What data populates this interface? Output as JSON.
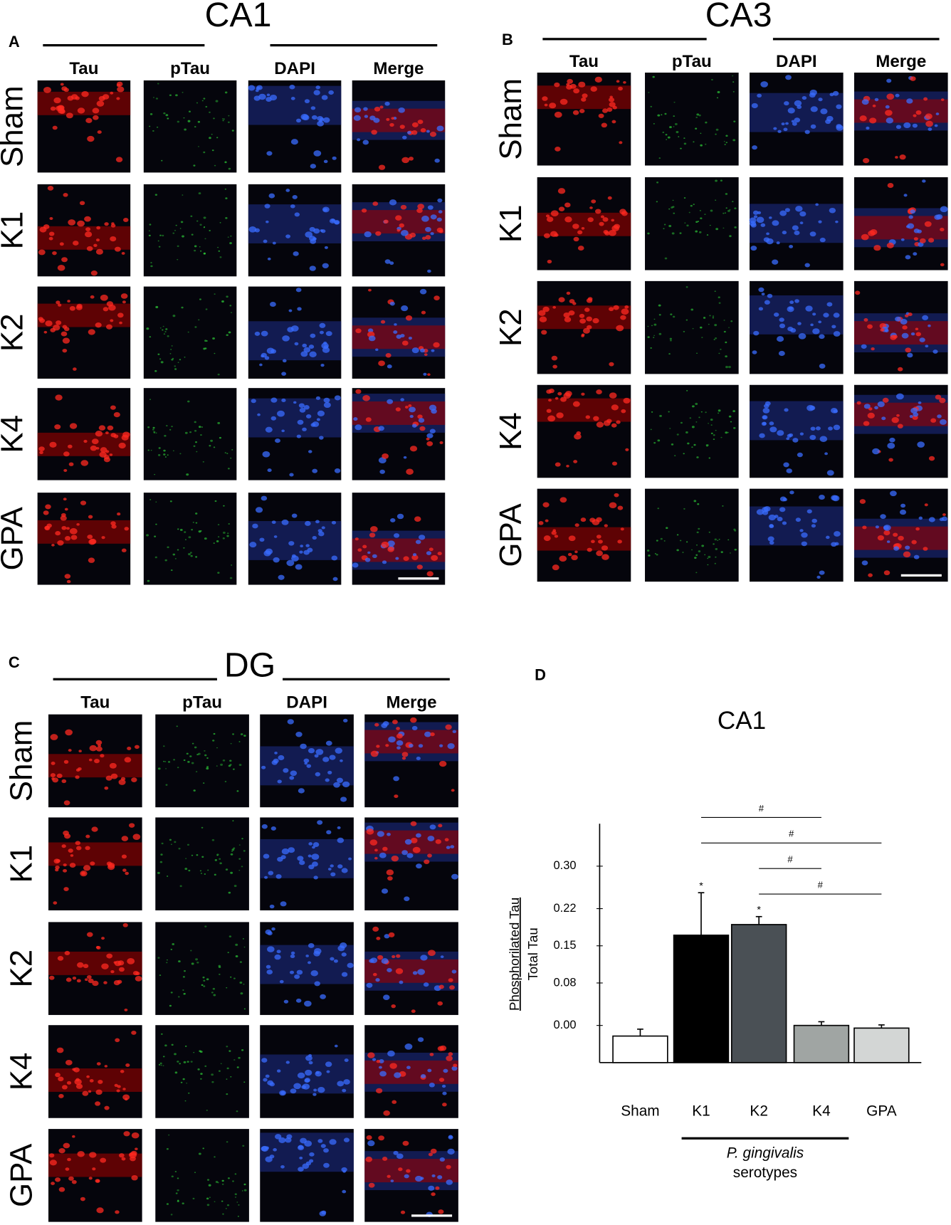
{
  "panels": [
    {
      "letter": "A",
      "region": "CA1",
      "columns": [
        "Tau",
        "pTau",
        "DAPI",
        "Merge"
      ],
      "rows": [
        "Sham",
        "K1",
        "K2",
        "K4",
        "GPA"
      ]
    },
    {
      "letter": "B",
      "region": "CA3",
      "columns": [
        "Tau",
        "pTau",
        "DAPI",
        "Merge"
      ],
      "rows": [
        "Sham",
        "K1",
        "K2",
        "K4",
        "GPA"
      ]
    },
    {
      "letter": "C",
      "region": "DG",
      "columns": [
        "Tau",
        "pTau",
        "DAPI",
        "Merge"
      ],
      "rows": [
        "Sham",
        "K1",
        "K2",
        "K4",
        "GPA"
      ]
    }
  ],
  "chart_data": {
    "type": "bar",
    "letter": "D",
    "title": "CA1",
    "ylabel_numerator": "Phosphorilated Tau",
    "ylabel_denominator": "Total Tau",
    "categories": [
      "Sham",
      "K1",
      "K2",
      "K4",
      "GPA"
    ],
    "values": [
      -0.02,
      0.17,
      0.19,
      0.0,
      -0.005
    ],
    "errors": [
      0.013,
      0.08,
      0.015,
      0.007,
      0.006
    ],
    "colors": [
      "#ffffff",
      "#000000",
      "#4a5055",
      "#a0a5a3",
      "#d3d6d5"
    ],
    "ylim": [
      -0.07,
      0.38
    ],
    "yticks": [
      {
        "value": 0.3,
        "label": "0.30"
      },
      {
        "value": 0.22,
        "label": "0.22"
      },
      {
        "value": 0.15,
        "label": "0.15"
      },
      {
        "value": 0.08,
        "label": "0.08"
      },
      {
        "value": 0,
        "label": "0.00"
      }
    ],
    "annotations": [
      {
        "category": "K1",
        "text": "*"
      },
      {
        "category": "K2",
        "text": "*"
      }
    ],
    "brackets": [
      {
        "from": "K1",
        "to": "K4",
        "label": "#"
      },
      {
        "from": "K1",
        "to": "GPA",
        "label": "#"
      },
      {
        "from": "K2",
        "to": "K4",
        "label": "#"
      },
      {
        "from": "K2",
        "to": "GPA",
        "label": "#"
      }
    ],
    "group": {
      "label": "P. gingivalis",
      "sublabel": "serotypes",
      "from": "K1",
      "to": "K4"
    }
  }
}
